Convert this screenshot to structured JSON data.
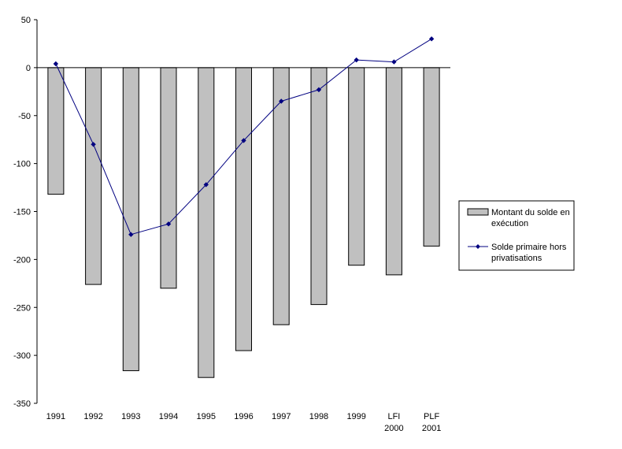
{
  "chart_data": {
    "type": "bar",
    "categories": [
      [
        "1991"
      ],
      [
        "1992"
      ],
      [
        "1993"
      ],
      [
        "1994"
      ],
      [
        "1995"
      ],
      [
        "1996"
      ],
      [
        "1997"
      ],
      [
        "1998"
      ],
      [
        "1999"
      ],
      [
        "LFI",
        "2000"
      ],
      [
        "PLF",
        "2001"
      ]
    ],
    "ylim": [
      -350,
      50
    ],
    "yticks": [
      "50",
      "0",
      "-50",
      "-100",
      "-150",
      "-200",
      "-250",
      "-300",
      "-350"
    ],
    "ytick_values": [
      50,
      0,
      -50,
      -100,
      -150,
      -200,
      -250,
      -300,
      -350
    ],
    "grid": false,
    "legend_position": "right",
    "series": [
      {
        "name": "Montant du solde en exécution",
        "legend_lines": [
          "Montant du solde en",
          "exécution"
        ],
        "type": "bar",
        "color": "#c0c0c0",
        "values": [
          -132,
          -226,
          -316,
          -230,
          -323,
          -295,
          -268,
          -247,
          -206,
          -216,
          -186
        ]
      },
      {
        "name": "Solde primaire hors privatisations",
        "legend_lines": [
          "Solde primaire hors",
          "privatisations"
        ],
        "type": "line",
        "color": "#000080",
        "values": [
          4,
          -80,
          -174,
          -163,
          -122,
          -76,
          -35,
          -23,
          8,
          6,
          30
        ]
      }
    ]
  }
}
